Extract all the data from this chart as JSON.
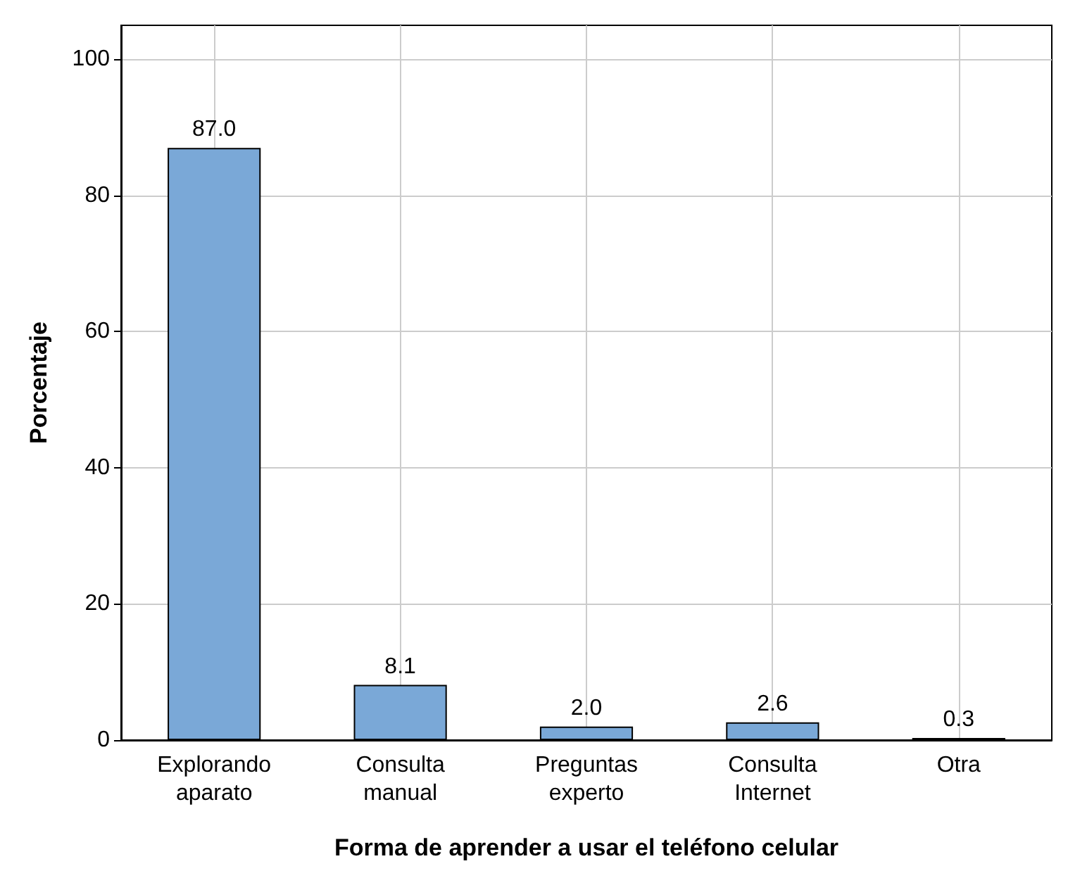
{
  "chart_data": {
    "type": "bar",
    "xlabel": "Forma de aprender a usar el teléfono celular",
    "ylabel": "Porcentaje",
    "categories": [
      "Explorando\naparato",
      "Consulta\nmanual",
      "Preguntas\nexperto",
      "Consulta\nInternet",
      "Otra"
    ],
    "values": [
      87.0,
      8.1,
      2.0,
      2.6,
      0.3
    ],
    "value_labels": [
      "87.0",
      "8.1",
      "2.0",
      "2.6",
      "0.3"
    ],
    "color": "#7aa8d7",
    "ylim": [
      0,
      105
    ],
    "yticks": [
      0,
      20,
      40,
      60,
      80,
      100
    ],
    "grid": true
  }
}
